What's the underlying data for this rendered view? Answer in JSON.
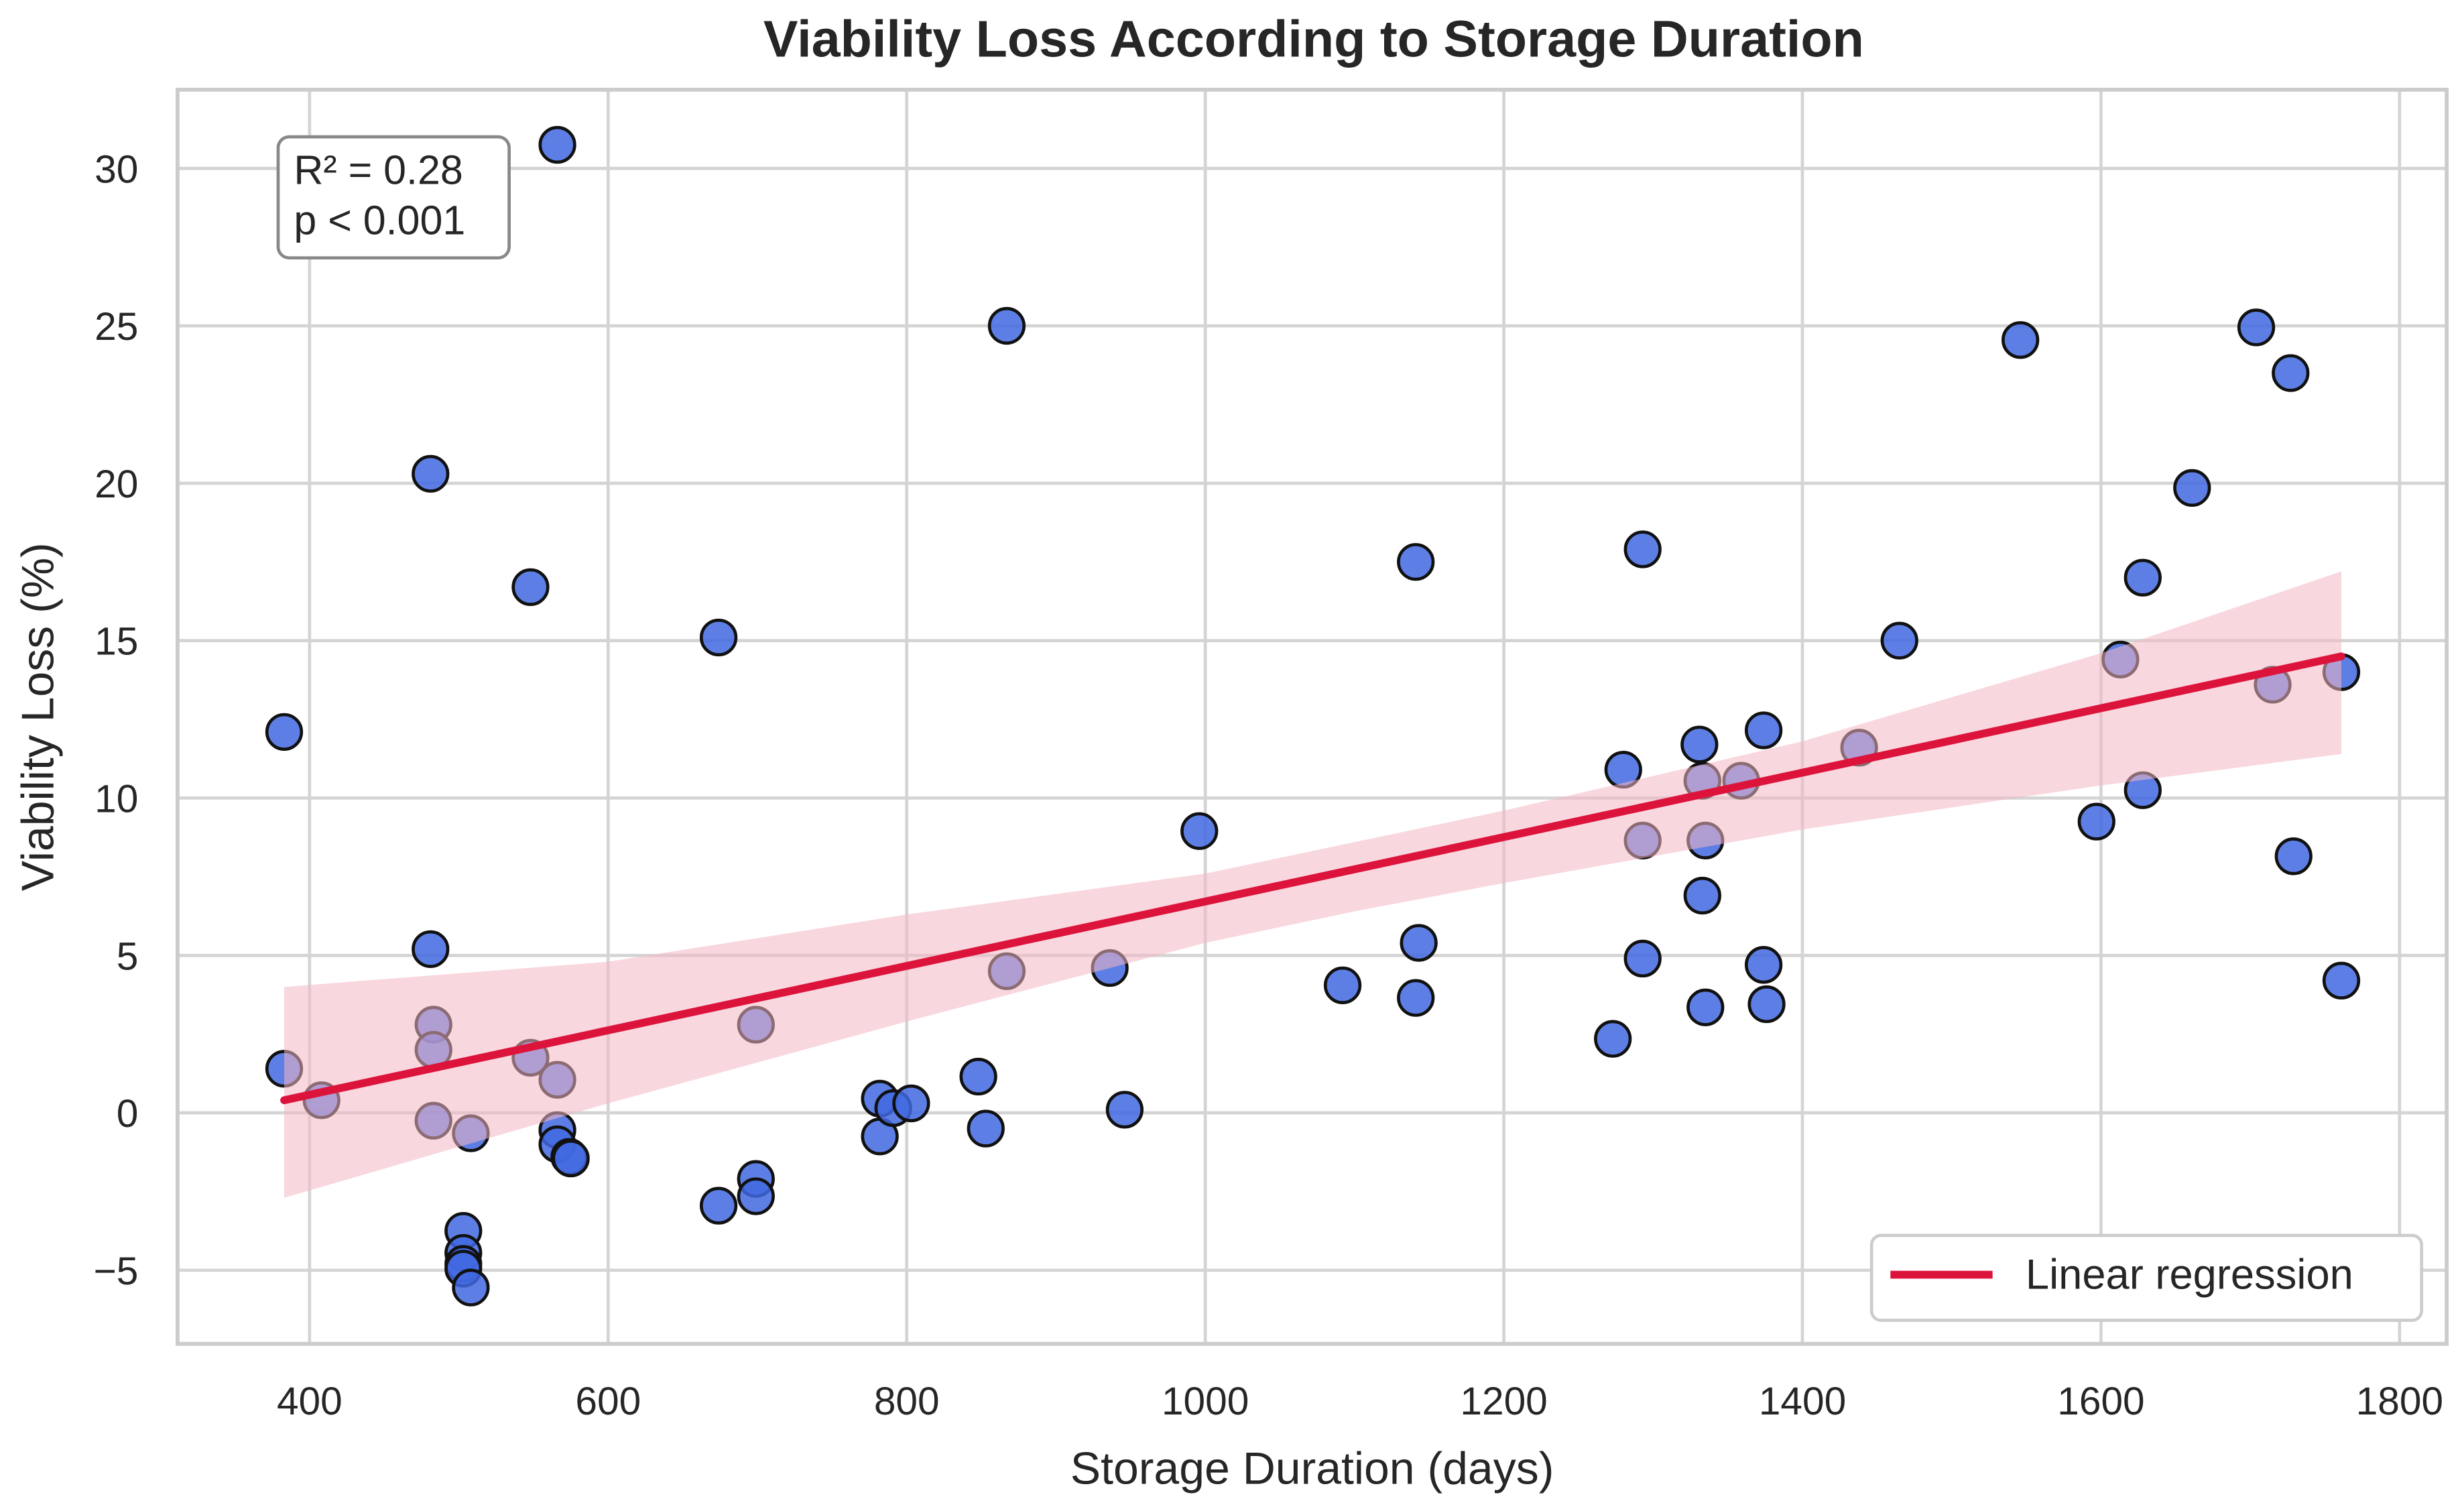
{
  "chart_data": {
    "type": "scatter",
    "title": "Viability Loss According to Storage Duration",
    "xlabel": "Storage Duration (days)",
    "ylabel": "Viability Loss (%)",
    "xlim": [
      310,
      1835
    ],
    "ylim": [
      -7.3,
      32.5
    ],
    "xticks": [
      400,
      600,
      800,
      1000,
      1200,
      1400,
      1600,
      1800
    ],
    "yticks": [
      -5,
      0,
      5,
      10,
      15,
      20,
      25,
      30
    ],
    "grid": true,
    "annotation": [
      "R² = 0.28",
      "p < 0.001"
    ],
    "legend": {
      "label": "Linear regression",
      "placement": "bottom-right"
    },
    "colors": {
      "points": "#4169e1",
      "line": "#dc143c",
      "band": "#f4b6c2"
    },
    "points": [
      [
        566,
        30.75
      ],
      [
        867,
        25.0
      ],
      [
        481,
        20.3
      ],
      [
        548,
        16.7
      ],
      [
        674,
        15.1
      ],
      [
        383,
        12.1
      ],
      [
        481,
        5.2
      ],
      [
        383,
        1.4
      ],
      [
        408,
        0.4
      ],
      [
        483,
        2.8
      ],
      [
        483,
        2.0
      ],
      [
        483,
        -0.25
      ],
      [
        508,
        -0.65
      ],
      [
        548,
        1.75
      ],
      [
        566,
        1.05
      ],
      [
        566,
        -0.55
      ],
      [
        566,
        -1.0
      ],
      [
        574,
        -1.4
      ],
      [
        575,
        -1.45
      ],
      [
        503,
        -3.75
      ],
      [
        503,
        -4.45
      ],
      [
        503,
        -4.8
      ],
      [
        503,
        -4.95
      ],
      [
        508,
        -5.55
      ],
      [
        699,
        2.8
      ],
      [
        699,
        -2.1
      ],
      [
        699,
        -2.65
      ],
      [
        674,
        -2.95
      ],
      [
        782,
        0.45
      ],
      [
        782,
        -0.75
      ],
      [
        791,
        0.15
      ],
      [
        803,
        0.3
      ],
      [
        848,
        1.15
      ],
      [
        853,
        -0.5
      ],
      [
        867,
        4.5
      ],
      [
        936,
        4.6
      ],
      [
        946,
        0.1
      ],
      [
        996,
        8.95
      ],
      [
        1092,
        4.05
      ],
      [
        1141,
        17.5
      ],
      [
        1143,
        5.4
      ],
      [
        1141,
        3.65
      ],
      [
        1273,
        2.35
      ],
      [
        1280,
        10.9
      ],
      [
        1293,
        17.9
      ],
      [
        1293,
        8.65
      ],
      [
        1293,
        4.9
      ],
      [
        1331,
        11.7
      ],
      [
        1333,
        10.55
      ],
      [
        1335,
        8.65
      ],
      [
        1333,
        6.9
      ],
      [
        1335,
        3.35
      ],
      [
        1359,
        10.55
      ],
      [
        1374,
        12.15
      ],
      [
        1374,
        4.7
      ],
      [
        1376,
        3.45
      ],
      [
        1438,
        11.6
      ],
      [
        1465,
        15.0
      ],
      [
        1546,
        24.55
      ],
      [
        1597,
        9.25
      ],
      [
        1613,
        14.4
      ],
      [
        1628,
        17.0
      ],
      [
        1628,
        10.25
      ],
      [
        1661,
        19.85
      ],
      [
        1704,
        24.95
      ],
      [
        1715,
        13.6
      ],
      [
        1727,
        23.5
      ],
      [
        1729,
        8.15
      ],
      [
        1761,
        14.0
      ],
      [
        1761,
        4.2
      ]
    ],
    "regression": {
      "x": [
        383,
        1761
      ],
      "y": [
        0.4,
        14.5
      ]
    },
    "confidence_band": {
      "x": [
        383,
        600,
        800,
        1000,
        1100,
        1200,
        1400,
        1600,
        1761
      ],
      "lower": [
        -2.7,
        0.3,
        2.9,
        5.4,
        6.4,
        7.3,
        9.0,
        10.4,
        11.4
      ],
      "upper": [
        4.0,
        4.8,
        6.3,
        7.6,
        8.6,
        9.6,
        11.8,
        14.6,
        17.2
      ]
    }
  }
}
